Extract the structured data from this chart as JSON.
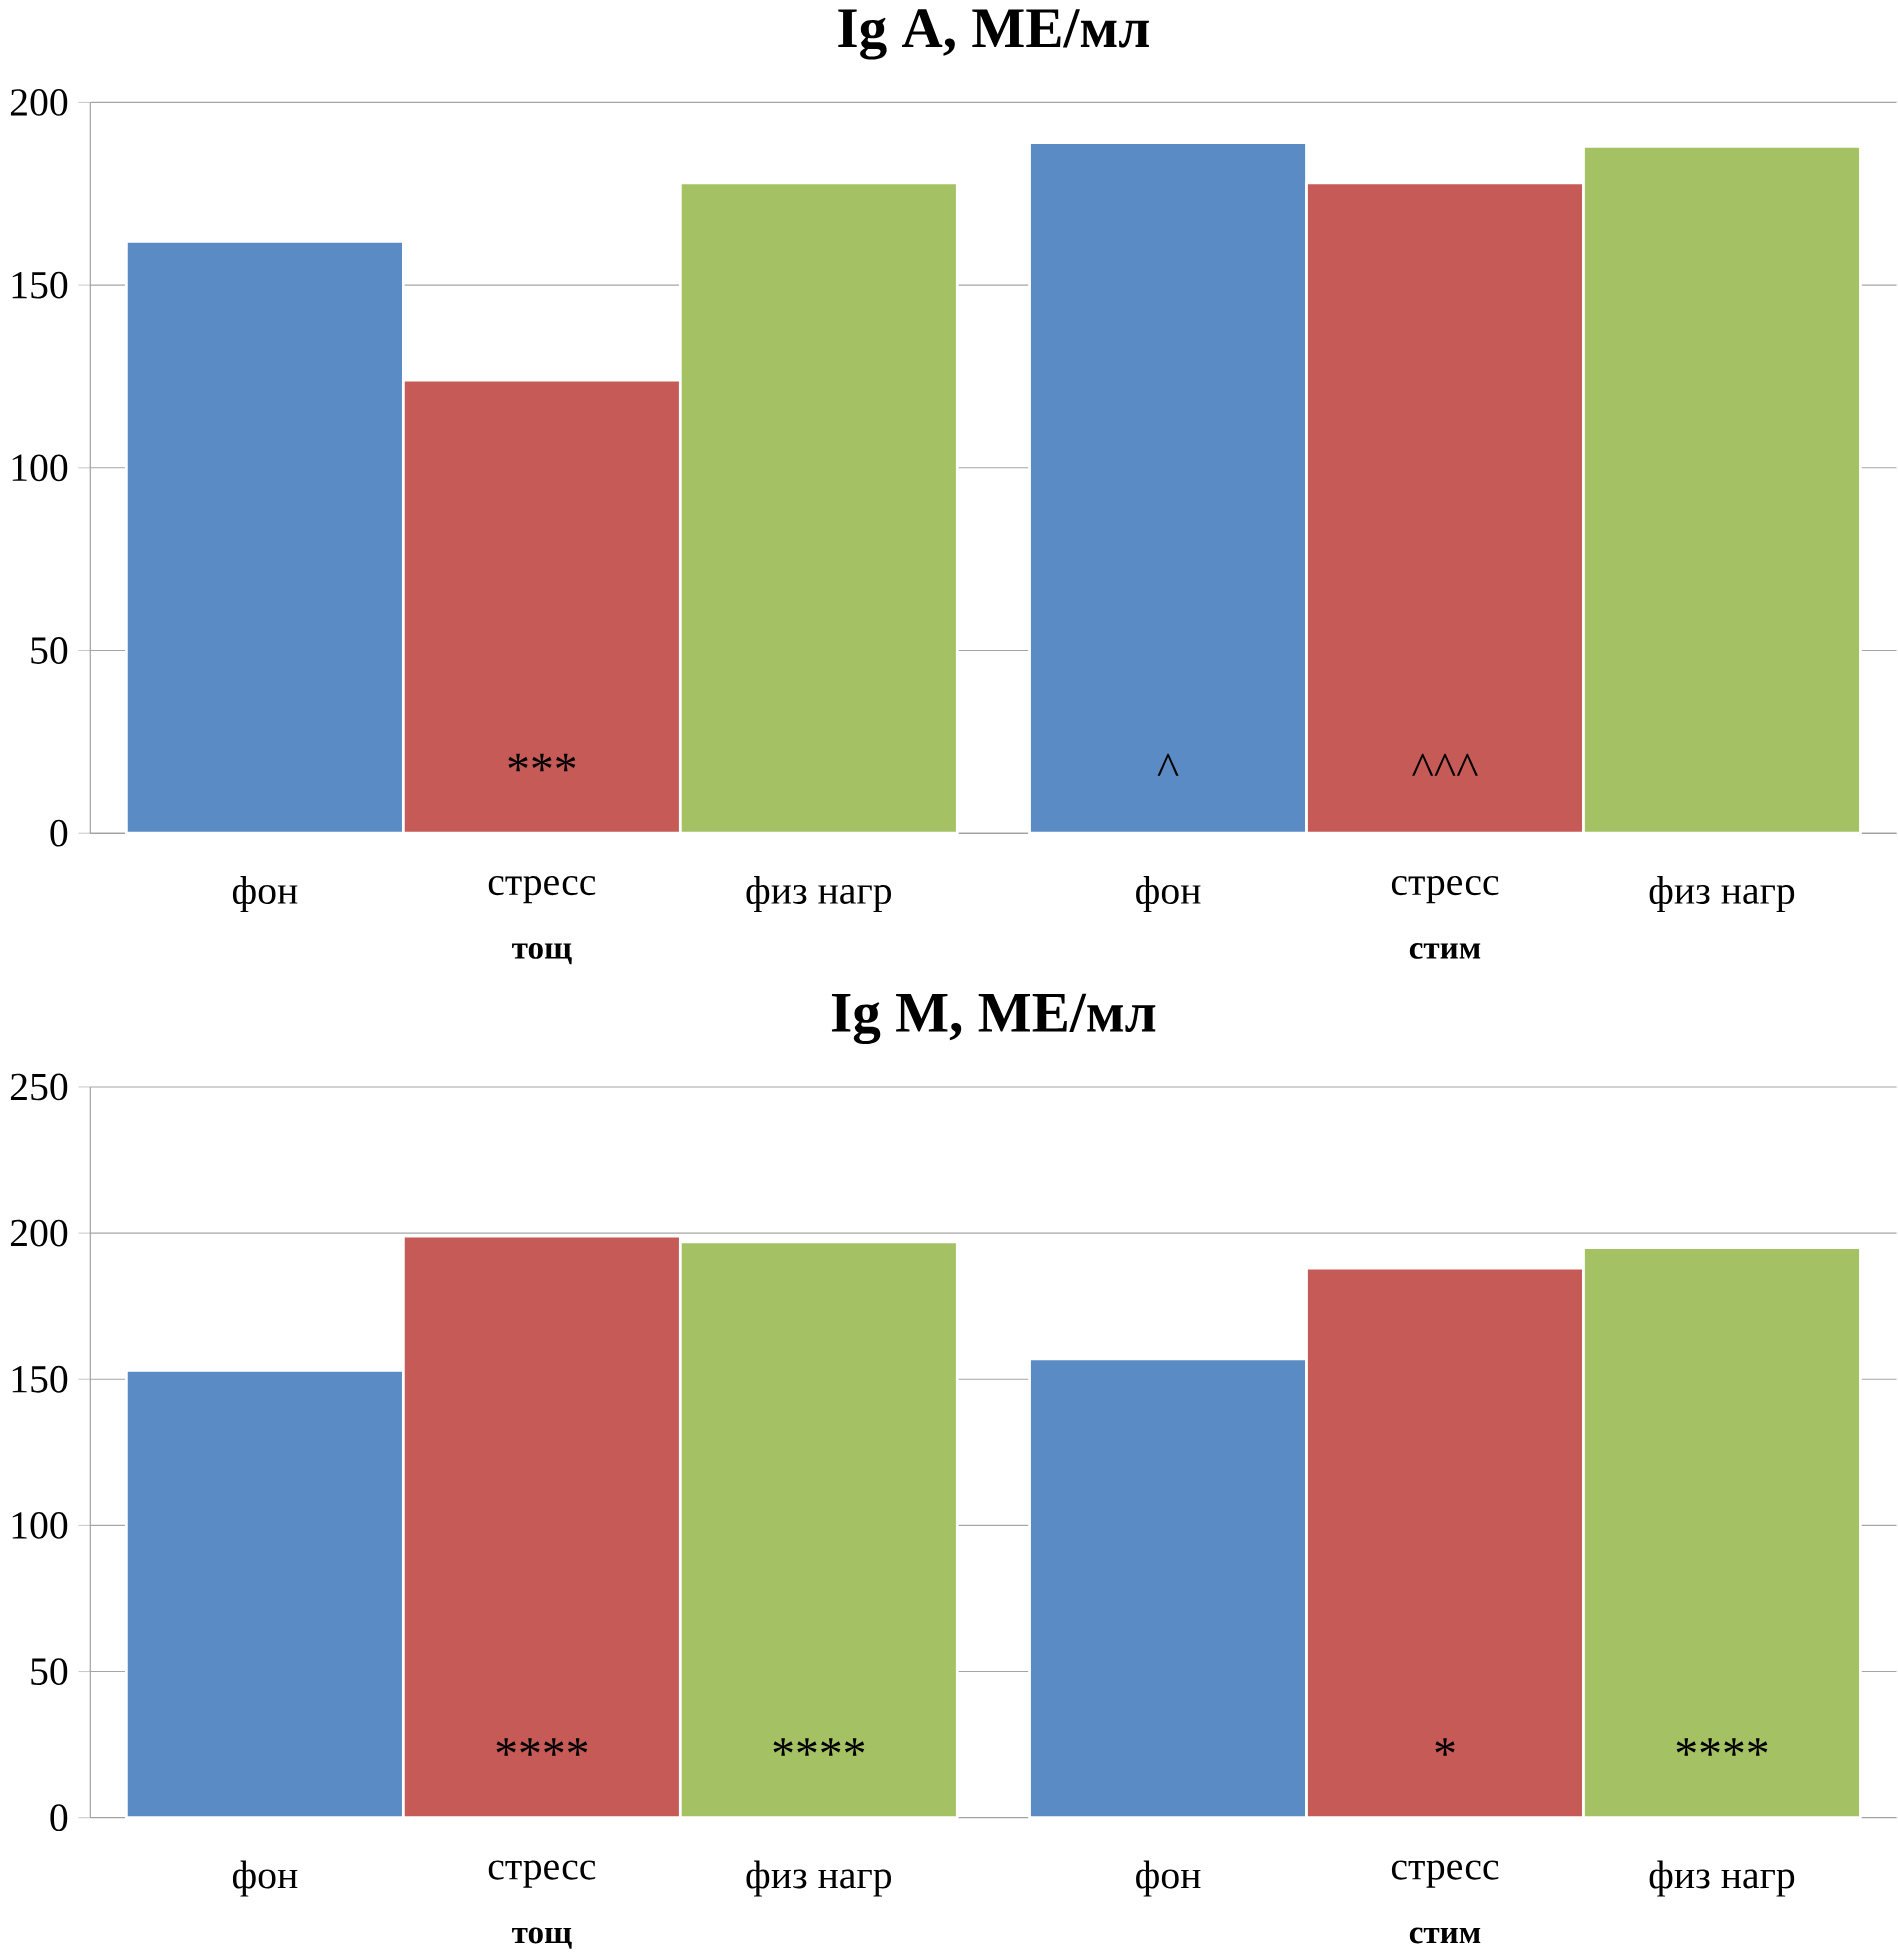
{
  "chart_data": [
    {
      "type": "bar",
      "title": "**Ig A, МЕ/мл**",
      "categories": [
        "тощ",
        "стим"
      ],
      "ylim": [
        0,
        200
      ],
      "yticks": [
        0,
        50,
        100,
        150,
        200
      ],
      "grid": "y",
      "legend": false,
      "series": [
        {
          "name": "фон",
          "color": "#5b8bc5",
          "values": [
            162,
            189
          ],
          "value_labels": [
            null,
            "^"
          ]
        },
        {
          "name": "стресс",
          "color": "#c55a57",
          "values": [
            124,
            178
          ],
          "value_labels": [
            "***",
            "^^^"
          ]
        },
        {
          "name": "физ нагр",
          "color": "#a4c263",
          "values": [
            178,
            188
          ]
        }
      ]
    },
    {
      "type": "bar",
      "title": "**Ig M, МЕ/мл**",
      "categories": [
        "тощ",
        "стим"
      ],
      "ylim": [
        0,
        250
      ],
      "yticks": [
        0,
        50,
        100,
        150,
        200,
        250
      ],
      "grid": "y",
      "legend": false,
      "series": [
        {
          "name": "фон",
          "color": "#5b8bc5",
          "values": [
            153,
            157
          ]
        },
        {
          "name": "стресс",
          "color": "#c55a57",
          "values": [
            199,
            188
          ],
          "value_labels": [
            "****",
            "*"
          ]
        },
        {
          "name": "физ нагр",
          "color": "#a4c263",
          "values": [
            197,
            195
          ],
          "value_labels": [
            "****",
            "****"
          ]
        }
      ]
    }
  ]
}
